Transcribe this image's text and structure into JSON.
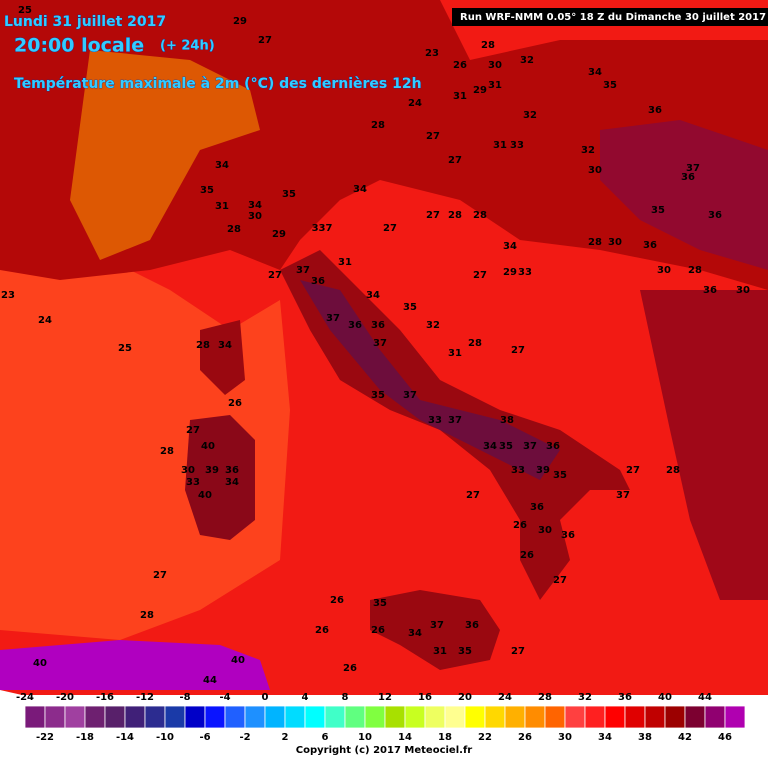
{
  "header": {
    "date": "Lundi 31 juillet 2017",
    "time": "20:00 locale",
    "lead": "(+ 24h)",
    "title": "Température maximale à 2m (°C) des dernières 12h",
    "run": "Run WRF-NMM 0.05° 18 Z du Dimanche 30 juillet 2017",
    "copyright": "Copyright (c) 2017 Meteociel.fr"
  },
  "map_labels": [
    23,
    24,
    25,
    27,
    37,
    36,
    31,
    337,
    34,
    35,
    31,
    34,
    30,
    28,
    29,
    35,
    34,
    27,
    27,
    28,
    28,
    34,
    27,
    29,
    33,
    28,
    30,
    36,
    30,
    28,
    36,
    30,
    27,
    28,
    31,
    35,
    32,
    34,
    37,
    36,
    37,
    36,
    35,
    37,
    33,
    37,
    38,
    34,
    35,
    37,
    36,
    33,
    39,
    35,
    27,
    28,
    37,
    27,
    36,
    26,
    30,
    36,
    26,
    27,
    27,
    28,
    26,
    35,
    26,
    26,
    34,
    37,
    36,
    31,
    35,
    27,
    26,
    28,
    34,
    26,
    27,
    40,
    28,
    30,
    39,
    36,
    33,
    40,
    34,
    40,
    44,
    40,
    28,
    32,
    30,
    26,
    24,
    23,
    28,
    27,
    31,
    29,
    31,
    32,
    36,
    35,
    34,
    27,
    31,
    33,
    32,
    30,
    37,
    36,
    35,
    36,
    25,
    29,
    27
  ],
  "colorbar": {
    "range": [
      -24,
      48
    ],
    "top_labels": [
      -24,
      -20,
      -16,
      -12,
      -8,
      -4,
      0,
      4,
      8,
      12,
      16,
      20,
      24,
      28,
      32,
      36,
      40,
      44
    ],
    "bottom_labels": [
      -22,
      -18,
      -14,
      -10,
      -6,
      -2,
      2,
      6,
      10,
      14,
      18,
      22,
      26,
      30,
      34,
      38,
      42,
      46
    ],
    "colors": [
      "#7a1a7a",
      "#8c2c8c",
      "#a040a0",
      "#6e2070",
      "#58206a",
      "#402078",
      "#2c2c90",
      "#1a3aa8",
      "#0000c8",
      "#0a14ff",
      "#2060ff",
      "#1e90ff",
      "#00b4ff",
      "#00dcff",
      "#00ffff",
      "#40ffc8",
      "#60ff80",
      "#80ff40",
      "#a8e000",
      "#c8ff20",
      "#eeff60",
      "#ffff90",
      "#ffff00",
      "#ffd800",
      "#ffb000",
      "#ff8c00",
      "#ff6400",
      "#ff4040",
      "#ff2020",
      "#ff0000",
      "#e00000",
      "#c00000",
      "#9c0000",
      "#7c0030",
      "#900070",
      "#b000b0"
    ]
  }
}
